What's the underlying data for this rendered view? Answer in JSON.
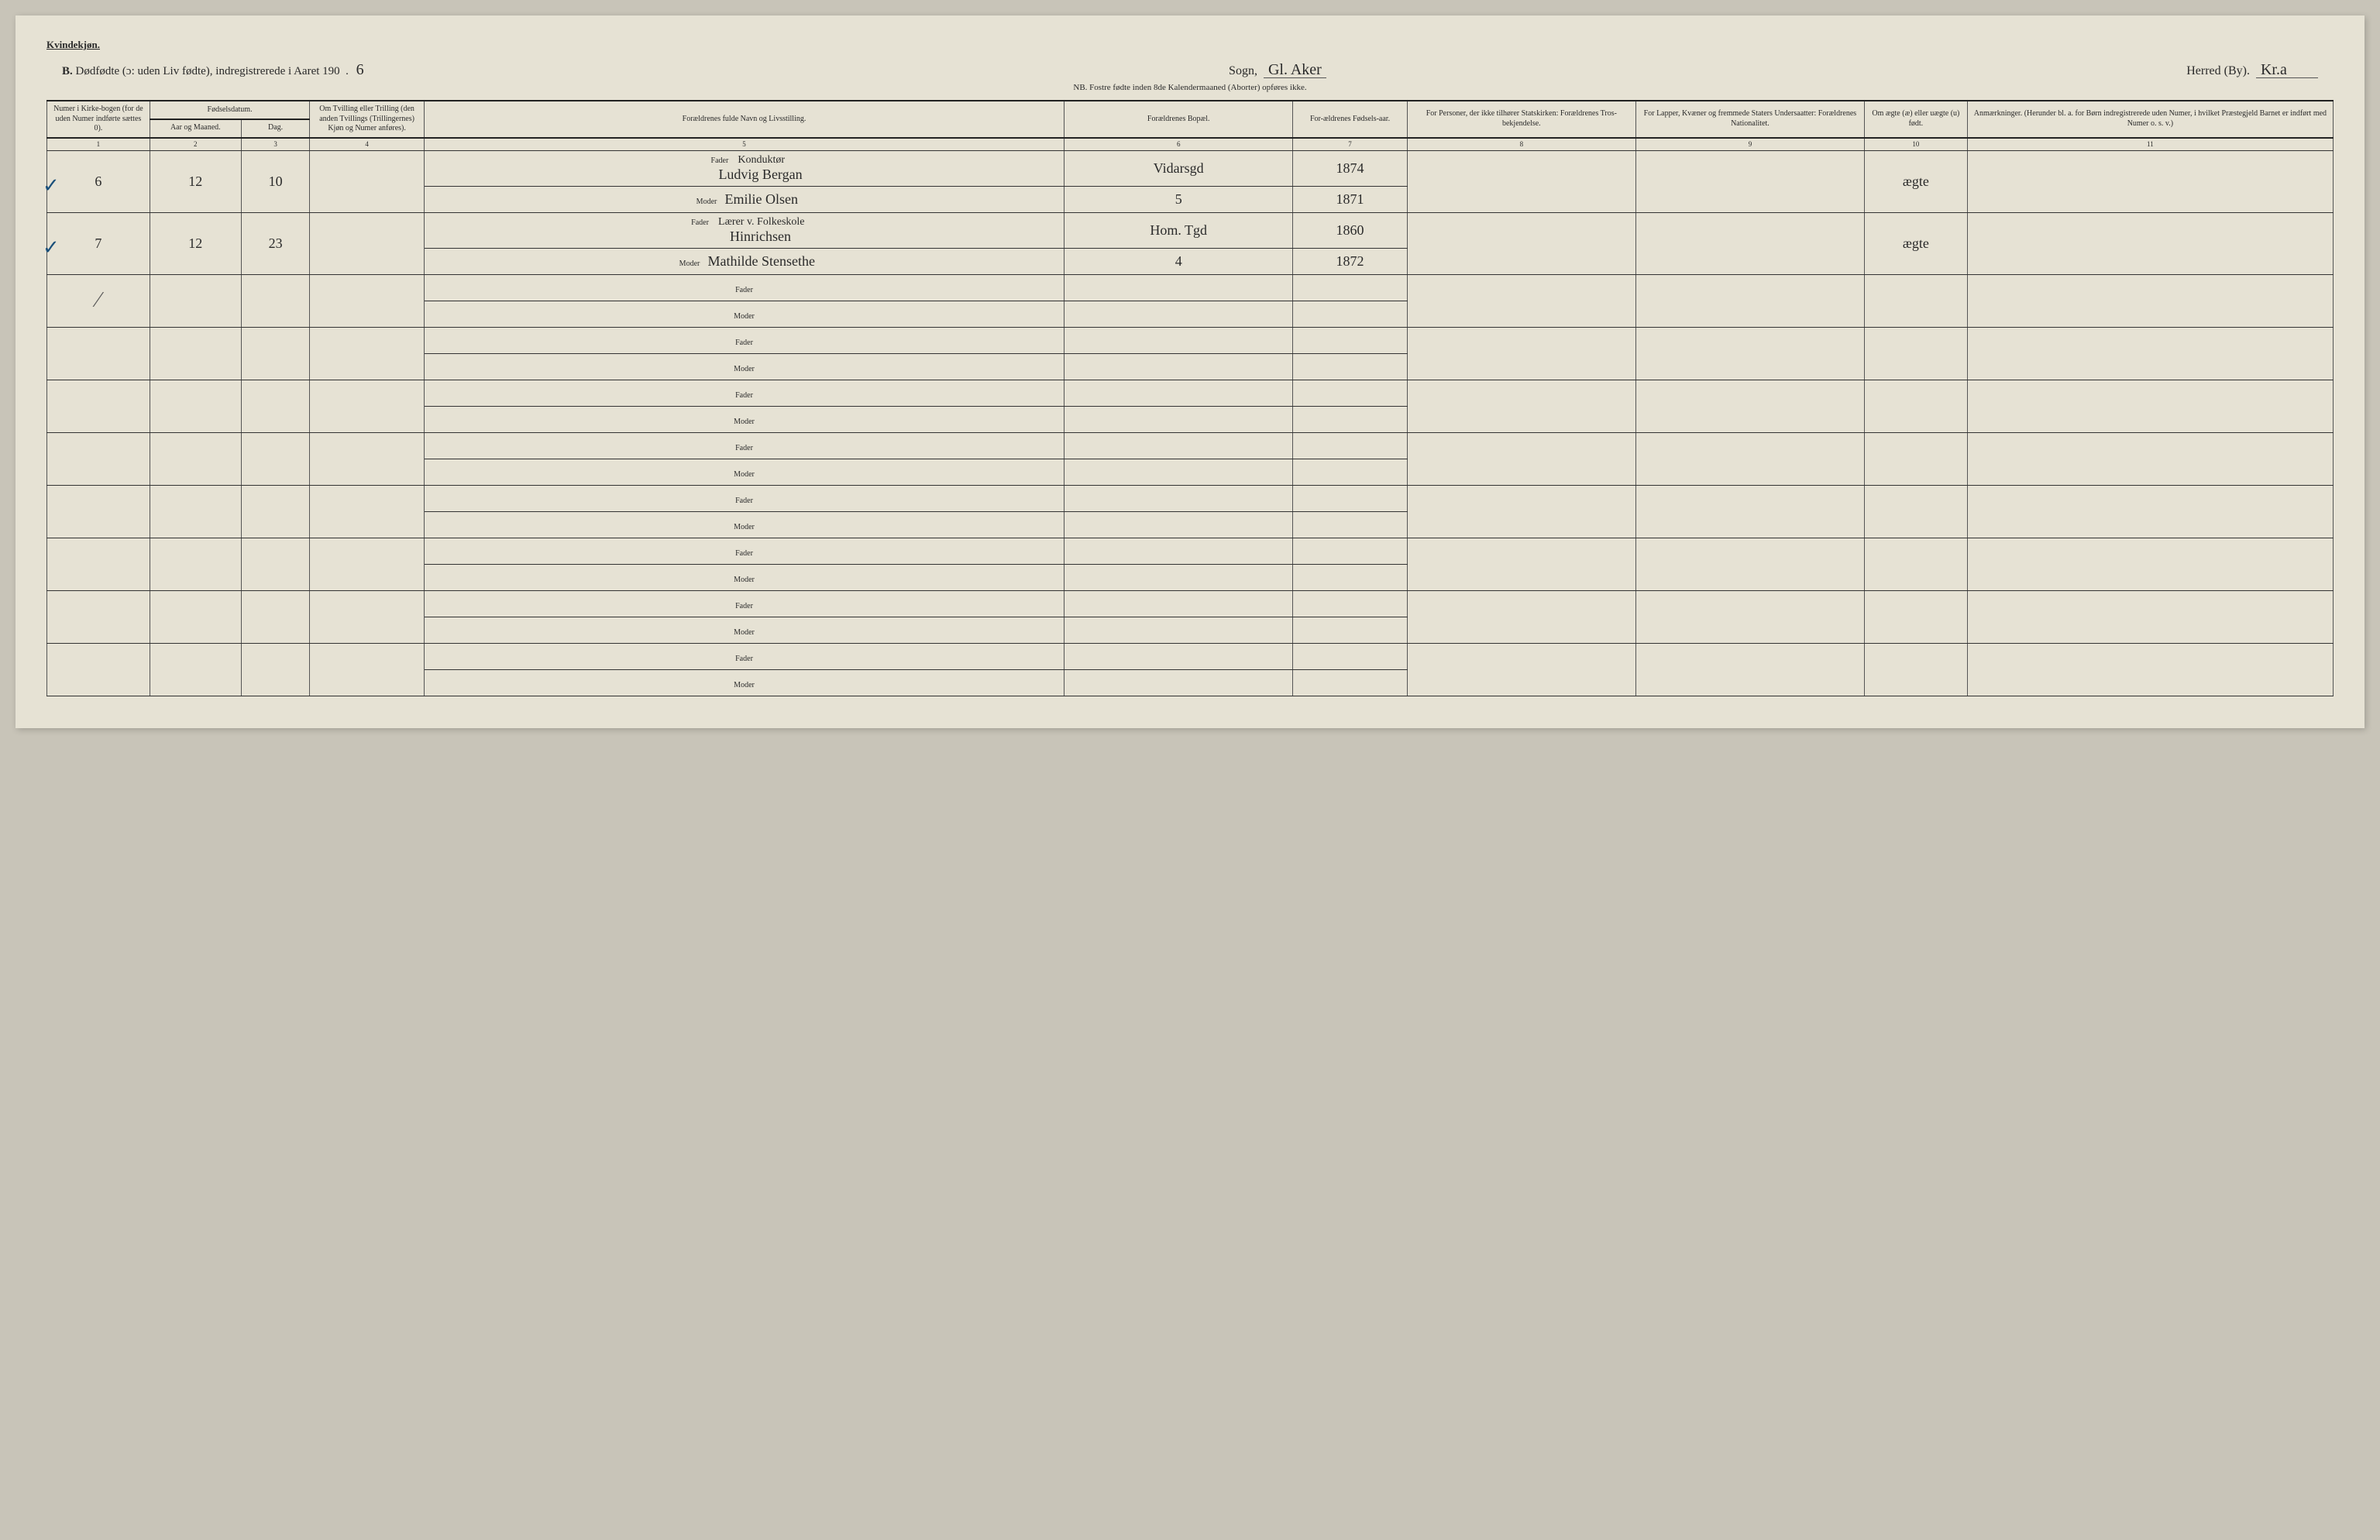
{
  "header": {
    "gender_label": "Kvindekjøn.",
    "section_letter": "B.",
    "main_title": "Dødfødte (ɔ: uden Liv fødte), indregistrerede i Aaret 190",
    "year_suffix": "6",
    "sogn_label": "Sogn,",
    "sogn_value": "Gl. Aker",
    "herred_label": "Herred (By).",
    "herred_value": "Kr.a",
    "nb": "NB.  Fostre fødte inden 8de Kalendermaaned (Aborter) opføres ikke."
  },
  "columns": {
    "c1": "Numer i Kirke-bogen (for de uden Numer indførte sættes 0).",
    "c2a": "Fødselsdatum.",
    "c2_sub1": "Aar og Maaned.",
    "c2_sub2": "Dag.",
    "c4": "Om Tvilling eller Trilling (den anden Tvillings (Trillingernes) Kjøn og Numer anføres).",
    "c5": "Forældrenes fulde Navn og Livsstilling.",
    "c6": "Forældrenes Bopæl.",
    "c7": "For-ældrenes Fødsels-aar.",
    "c8": "For Personer, der ikke tilhører Statskirken: Forældrenes Tros-bekjendelse.",
    "c9": "For Lapper, Kvæner og fremmede Staters Undersaatter: Forældrenes Nationalitet.",
    "c10": "Om ægte (æ) eller uægte (u) født.",
    "c11": "Anmærkninger. (Herunder bl. a. for Børn indregistrerede uden Numer, i hvilket Præstegjeld Barnet er indført med Numer o. s. v.)",
    "nums": [
      "1",
      "2",
      "3",
      "4",
      "5",
      "6",
      "7",
      "8",
      "9",
      "10",
      "11"
    ]
  },
  "labels": {
    "fader": "Fader",
    "moder": "Moder"
  },
  "rows": [
    {
      "check": "✓",
      "num": "6",
      "month": "12",
      "day": "10",
      "twin": "",
      "fader_title": "Konduktør",
      "fader_name": "Ludvig Bergan",
      "moder_name": "Emilie Olsen",
      "bopael_f": "Vidarsgd",
      "bopael_m": "5",
      "year_f": "1874",
      "year_m": "1871",
      "legit": "ægte"
    },
    {
      "check": "✓",
      "num": "7",
      "month": "12",
      "day": "23",
      "twin": "",
      "fader_title": "Lærer v. Folkeskole",
      "fader_name": "Hinrichsen",
      "moder_name": "Mathilde Stensethe",
      "bopael_f": "Hom. Tgd",
      "bopael_m": "4",
      "year_f": "1860",
      "year_m": "1872",
      "legit": "ægte"
    },
    {
      "check": "",
      "strike": true
    },
    {},
    {},
    {},
    {},
    {},
    {},
    {}
  ],
  "style": {
    "page_bg": "#e6e2d4",
    "ink": "#2a2a2a",
    "rule": "#333333",
    "check_color": "#1a4f7a",
    "hand_font": "Brush Script MT",
    "body_font": "Georgia",
    "font_size_header": 10,
    "font_size_title": 15
  }
}
